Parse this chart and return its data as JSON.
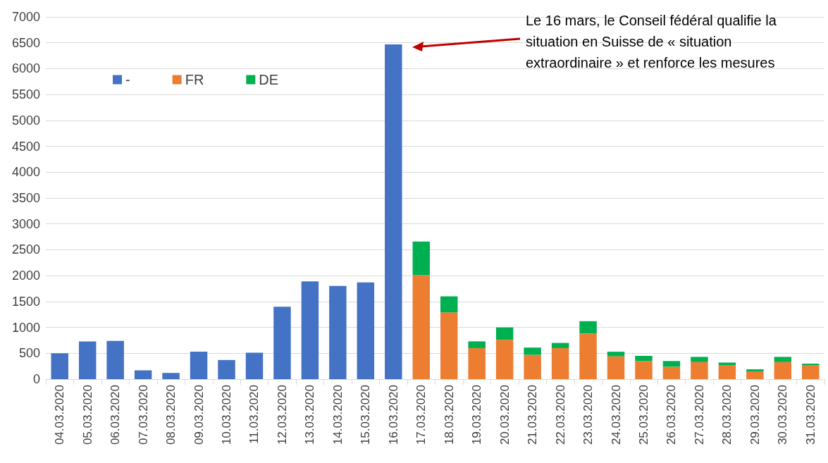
{
  "chart_data": {
    "type": "bar",
    "stacked": true,
    "categories": [
      "04.03.2020",
      "05.03.2020",
      "06.03.2020",
      "07.03.2020",
      "08.03.2020",
      "09.03.2020",
      "10.03.2020",
      "11.03.2020",
      "12.03.2020",
      "13.03.2020",
      "14.03.2020",
      "15.03.2020",
      "16.03.2020",
      "17.03.2020",
      "18.03.2020",
      "19.03.2020",
      "20.03.2020",
      "21.03.2020",
      "22.03.2020",
      "23.03.2020",
      "24.03.2020",
      "25.03.2020",
      "26.03.2020",
      "27.03.2020",
      "28.03.2020",
      "29.03.2020",
      "30.03.2020",
      "31.03.2020"
    ],
    "series": [
      {
        "name": "-",
        "color": "#4472c4",
        "values": [
          500,
          730,
          740,
          170,
          120,
          530,
          370,
          510,
          1400,
          1890,
          1800,
          1870,
          6470,
          null,
          null,
          null,
          null,
          null,
          null,
          null,
          null,
          null,
          null,
          null,
          null,
          null,
          null,
          null
        ]
      },
      {
        "name": "FR",
        "color": "#ed7d31",
        "values": [
          null,
          null,
          null,
          null,
          null,
          null,
          null,
          null,
          null,
          null,
          null,
          null,
          null,
          2010,
          1290,
          600,
          760,
          470,
          600,
          880,
          440,
          350,
          240,
          330,
          270,
          150,
          330,
          270
        ]
      },
      {
        "name": "DE",
        "color": "#00b050",
        "values": [
          null,
          null,
          null,
          null,
          null,
          null,
          null,
          null,
          null,
          null,
          null,
          null,
          null,
          650,
          310,
          130,
          240,
          140,
          100,
          240,
          90,
          100,
          110,
          100,
          50,
          40,
          100,
          30
        ]
      }
    ],
    "ylim": [
      0,
      7000
    ],
    "yticks": [
      0,
      500,
      1000,
      1500,
      2000,
      2500,
      3000,
      3500,
      4000,
      4500,
      5000,
      5500,
      6000,
      6500,
      7000
    ],
    "grid": "y",
    "legend": "top left",
    "annotations": [
      "Le 16 mars, le Conseil fédéral qualifie la situation en Suisse de « situation extraordinaire » et renforce les mesures"
    ]
  }
}
